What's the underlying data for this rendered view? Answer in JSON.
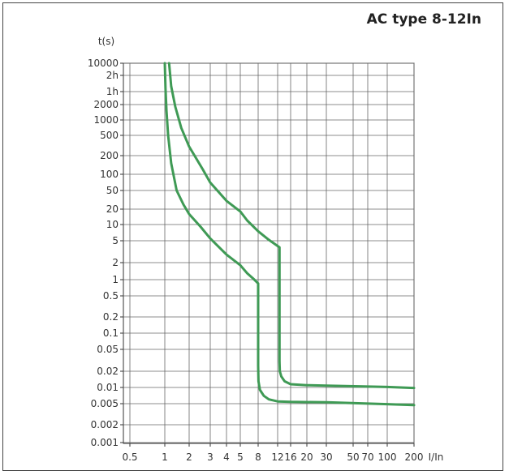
{
  "chart_data": {
    "type": "line",
    "title": "AC type 8-12In",
    "xlabel": "I/In",
    "ylabel": "t(s)",
    "x_scale": "log",
    "y_scale": "log",
    "xlim": [
      0.5,
      200
    ],
    "ylim": [
      0.001,
      10000
    ],
    "grid": true,
    "x_ticks": [
      {
        "label": "0.5",
        "value": 0.5
      },
      {
        "label": "1",
        "value": 1
      },
      {
        "label": "2",
        "value": 2
      },
      {
        "label": "3",
        "value": 3
      },
      {
        "label": "4",
        "value": 4
      },
      {
        "label": "5",
        "value": 5
      },
      {
        "label": "8",
        "value": 8
      },
      {
        "label": "12",
        "value": 12
      },
      {
        "label": "16",
        "value": 16
      },
      {
        "label": "20",
        "value": 20
      },
      {
        "label": "30",
        "value": 30
      },
      {
        "label": "50",
        "value": 50
      },
      {
        "label": "70",
        "value": 70
      },
      {
        "label": "100",
        "value": 100
      },
      {
        "label": "200",
        "value": 200
      }
    ],
    "y_ticks": [
      {
        "label": "10000",
        "value": 10000
      },
      {
        "label": "2h",
        "value": 7200
      },
      {
        "label": "1h",
        "value": 3600
      },
      {
        "label": "2000",
        "value": 2000
      },
      {
        "label": "1000",
        "value": 1000
      },
      {
        "label": "500",
        "value": 500
      },
      {
        "label": "200",
        "value": 200
      },
      {
        "label": "100",
        "value": 100
      },
      {
        "label": "50",
        "value": 50
      },
      {
        "label": "20",
        "value": 20
      },
      {
        "label": "10",
        "value": 10
      },
      {
        "label": "5",
        "value": 5
      },
      {
        "label": "2",
        "value": 2
      },
      {
        "label": "1",
        "value": 1
      },
      {
        "label": "0.5",
        "value": 0.5
      },
      {
        "label": "0.2",
        "value": 0.2
      },
      {
        "label": "0.1",
        "value": 0.1
      },
      {
        "label": "0.05",
        "value": 0.05
      },
      {
        "label": "0.02",
        "value": 0.02
      },
      {
        "label": "0.01",
        "value": 0.01
      },
      {
        "label": "0.005",
        "value": 0.005
      },
      {
        "label": "0.002",
        "value": 0.002
      },
      {
        "label": "0.001",
        "value": 0.001
      }
    ],
    "line_color": "#3f9a55",
    "series": [
      {
        "x": [
          1.0,
          1.02,
          1.05,
          1.1,
          1.2,
          1.4,
          1.7,
          2.0,
          2.5,
          3.0,
          4.0,
          5.0,
          6.0,
          7.0,
          8.0,
          8.0,
          8.05,
          8.3,
          9.0,
          10.0,
          12.0,
          16.0,
          30.0,
          100.0,
          200.0
        ],
        "y": [
          10000,
          4000,
          1500,
          500,
          150,
          50,
          25,
          16,
          9,
          5.5,
          2.8,
          1.8,
          1.3,
          1.05,
          0.85,
          0.025,
          0.013,
          0.009,
          0.007,
          0.006,
          0.0055,
          0.0054,
          0.0053,
          0.0049,
          0.0047
        ]
      },
      {
        "x": [
          1.13,
          1.2,
          1.35,
          1.6,
          2.0,
          2.6,
          3.0,
          4.0,
          5.0,
          6.0,
          8.0,
          10.0,
          12.5,
          12.5,
          12.6,
          13.0,
          14.0,
          16.0,
          20.0,
          30.0,
          100.0,
          200.0
        ],
        "y": [
          10000,
          4500,
          1800,
          700,
          300,
          120,
          70,
          30,
          18,
          12,
          7.5,
          5.2,
          3.8,
          0.03,
          0.02,
          0.016,
          0.013,
          0.0115,
          0.011,
          0.0108,
          0.0102,
          0.0098
        ]
      }
    ]
  }
}
